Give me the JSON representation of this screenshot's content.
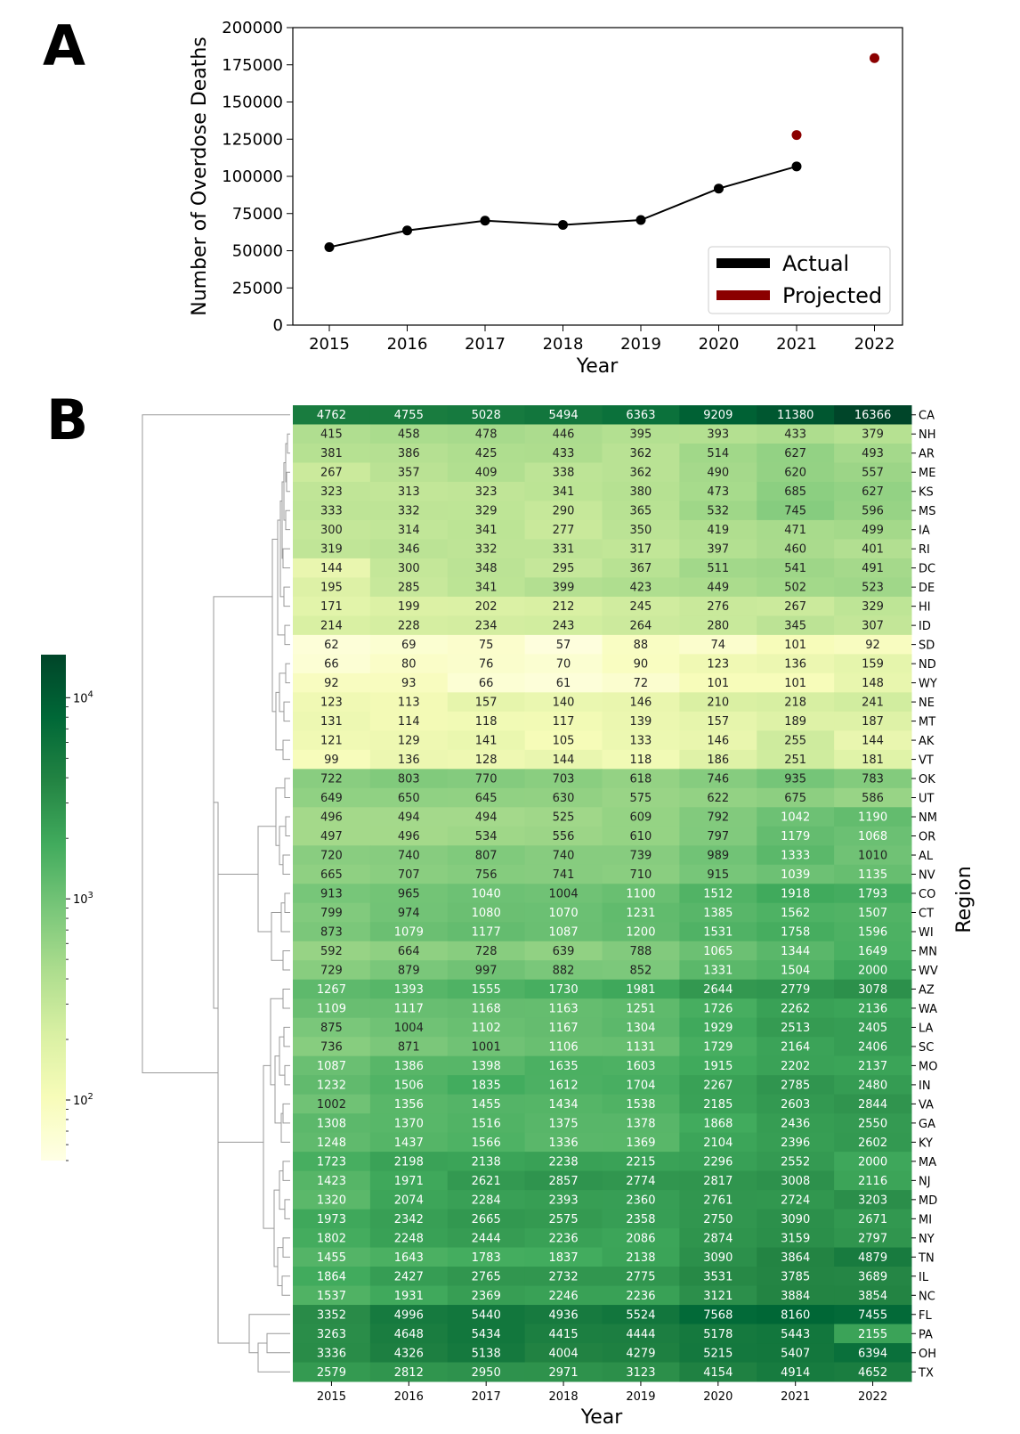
{
  "panels": {
    "a": "A",
    "b": "B"
  },
  "chart_data": [
    {
      "type": "line",
      "panel": "A",
      "xlabel": "Year",
      "ylabel": "Number of Overdose Deaths",
      "x": [
        2015,
        2016,
        2017,
        2018,
        2019,
        2020,
        2021,
        2022
      ],
      "ylim": [
        0,
        200000
      ],
      "yticks": [
        0,
        25000,
        50000,
        75000,
        100000,
        125000,
        150000,
        175000,
        200000
      ],
      "series": [
        {
          "name": "Actual",
          "color": "#000000",
          "x": [
            2015,
            2016,
            2017,
            2018,
            2019,
            2020,
            2021
          ],
          "values": [
            52404,
            63632,
            70237,
            67367,
            70630,
            91799,
            106699
          ]
        },
        {
          "name": "Projected",
          "color": "#8b0000",
          "x": [
            2021,
            2022
          ],
          "values": [
            127800,
            179500
          ]
        }
      ],
      "legend": {
        "position": "bottom-right",
        "entries": [
          "Actual",
          "Projected"
        ]
      }
    },
    {
      "type": "heatmap",
      "panel": "B",
      "xlabel": "Year",
      "ylabel": "Region",
      "color_scale": "log",
      "colormap": "YlGn",
      "colorbar_ticks": [
        {
          "label": "10",
          "exp": "2",
          "value": 100
        },
        {
          "label": "10",
          "exp": "3",
          "value": 1000
        },
        {
          "label": "10",
          "exp": "4",
          "value": 10000
        }
      ],
      "colorbar_range": [
        50,
        16366
      ],
      "years": [
        "2015",
        "2016",
        "2017",
        "2018",
        "2019",
        "2020",
        "2021",
        "2022"
      ],
      "rows": [
        {
          "region": "CA",
          "values": [
            4762,
            4755,
            5028,
            5494,
            6363,
            9209,
            11380,
            16366
          ]
        },
        {
          "region": "NH",
          "values": [
            415,
            458,
            478,
            446,
            395,
            393,
            433,
            379
          ]
        },
        {
          "region": "AR",
          "values": [
            381,
            386,
            425,
            433,
            362,
            514,
            627,
            493
          ]
        },
        {
          "region": "ME",
          "values": [
            267,
            357,
            409,
            338,
            362,
            490,
            620,
            557
          ]
        },
        {
          "region": "KS",
          "values": [
            323,
            313,
            323,
            341,
            380,
            473,
            685,
            627
          ]
        },
        {
          "region": "MS",
          "values": [
            333,
            332,
            329,
            290,
            365,
            532,
            745,
            596
          ]
        },
        {
          "region": "IA",
          "values": [
            300,
            314,
            341,
            277,
            350,
            419,
            471,
            499
          ]
        },
        {
          "region": "RI",
          "values": [
            319,
            346,
            332,
            331,
            317,
            397,
            460,
            401
          ]
        },
        {
          "region": "DC",
          "values": [
            144,
            300,
            348,
            295,
            367,
            511,
            541,
            491
          ]
        },
        {
          "region": "DE",
          "values": [
            195,
            285,
            341,
            399,
            423,
            449,
            502,
            523
          ]
        },
        {
          "region": "HI",
          "values": [
            171,
            199,
            202,
            212,
            245,
            276,
            267,
            329
          ]
        },
        {
          "region": "ID",
          "values": [
            214,
            228,
            234,
            243,
            264,
            280,
            345,
            307
          ]
        },
        {
          "region": "SD",
          "values": [
            62,
            69,
            75,
            57,
            88,
            74,
            101,
            92
          ]
        },
        {
          "region": "ND",
          "values": [
            66,
            80,
            76,
            70,
            90,
            123,
            136,
            159
          ]
        },
        {
          "region": "WY",
          "values": [
            92,
            93,
            66,
            61,
            72,
            101,
            101,
            148
          ]
        },
        {
          "region": "NE",
          "values": [
            123,
            113,
            157,
            140,
            146,
            210,
            218,
            241
          ]
        },
        {
          "region": "MT",
          "values": [
            131,
            114,
            118,
            117,
            139,
            157,
            189,
            187
          ]
        },
        {
          "region": "AK",
          "values": [
            121,
            129,
            141,
            105,
            133,
            146,
            255,
            144
          ]
        },
        {
          "region": "VT",
          "values": [
            99,
            136,
            128,
            144,
            118,
            186,
            251,
            181
          ]
        },
        {
          "region": "OK",
          "values": [
            722,
            803,
            770,
            703,
            618,
            746,
            935,
            783
          ]
        },
        {
          "region": "UT",
          "values": [
            649,
            650,
            645,
            630,
            575,
            622,
            675,
            586
          ]
        },
        {
          "region": "NM",
          "values": [
            496,
            494,
            494,
            525,
            609,
            792,
            1042,
            1190
          ]
        },
        {
          "region": "OR",
          "values": [
            497,
            496,
            534,
            556,
            610,
            797,
            1179,
            1068
          ]
        },
        {
          "region": "AL",
          "values": [
            720,
            740,
            807,
            740,
            739,
            989,
            1333,
            1010
          ]
        },
        {
          "region": "NV",
          "values": [
            665,
            707,
            756,
            741,
            710,
            915,
            1039,
            1135
          ]
        },
        {
          "region": "CO",
          "values": [
            913,
            965,
            1040,
            1004,
            1100,
            1512,
            1918,
            1793
          ]
        },
        {
          "region": "CT",
          "values": [
            799,
            974,
            1080,
            1070,
            1231,
            1385,
            1562,
            1507
          ]
        },
        {
          "region": "WI",
          "values": [
            873,
            1079,
            1177,
            1087,
            1200,
            1531,
            1758,
            1596
          ]
        },
        {
          "region": "MN",
          "values": [
            592,
            664,
            728,
            639,
            788,
            1065,
            1344,
            1649
          ]
        },
        {
          "region": "WV",
          "values": [
            729,
            879,
            997,
            882,
            852,
            1331,
            1504,
            2000
          ]
        },
        {
          "region": "AZ",
          "values": [
            1267,
            1393,
            1555,
            1730,
            1981,
            2644,
            2779,
            3078
          ]
        },
        {
          "region": "WA",
          "values": [
            1109,
            1117,
            1168,
            1163,
            1251,
            1726,
            2262,
            2136
          ]
        },
        {
          "region": "LA",
          "values": [
            875,
            1004,
            1102,
            1167,
            1304,
            1929,
            2513,
            2405
          ]
        },
        {
          "region": "SC",
          "values": [
            736,
            871,
            1001,
            1106,
            1131,
            1729,
            2164,
            2406
          ]
        },
        {
          "region": "MO",
          "values": [
            1087,
            1386,
            1398,
            1635,
            1603,
            1915,
            2202,
            2137
          ]
        },
        {
          "region": "IN",
          "values": [
            1232,
            1506,
            1835,
            1612,
            1704,
            2267,
            2785,
            2480
          ]
        },
        {
          "region": "VA",
          "values": [
            1002,
            1356,
            1455,
            1434,
            1538,
            2185,
            2603,
            2844
          ]
        },
        {
          "region": "GA",
          "values": [
            1308,
            1370,
            1516,
            1375,
            1378,
            1868,
            2436,
            2550
          ]
        },
        {
          "region": "KY",
          "values": [
            1248,
            1437,
            1566,
            1336,
            1369,
            2104,
            2396,
            2602
          ]
        },
        {
          "region": "MA",
          "values": [
            1723,
            2198,
            2138,
            2238,
            2215,
            2296,
            2552,
            2000
          ]
        },
        {
          "region": "NJ",
          "values": [
            1423,
            1971,
            2621,
            2857,
            2774,
            2817,
            3008,
            2116
          ]
        },
        {
          "region": "MD",
          "values": [
            1320,
            2074,
            2284,
            2393,
            2360,
            2761,
            2724,
            3203
          ]
        },
        {
          "region": "MI",
          "values": [
            1973,
            2342,
            2665,
            2575,
            2358,
            2750,
            3090,
            2671
          ]
        },
        {
          "region": "NY",
          "values": [
            1802,
            2248,
            2444,
            2236,
            2086,
            2874,
            3159,
            2797
          ]
        },
        {
          "region": "TN",
          "values": [
            1455,
            1643,
            1783,
            1837,
            2138,
            3090,
            3864,
            4879
          ]
        },
        {
          "region": "IL",
          "values": [
            1864,
            2427,
            2765,
            2732,
            2775,
            3531,
            3785,
            3689
          ]
        },
        {
          "region": "NC",
          "values": [
            1537,
            1931,
            2369,
            2246,
            2236,
            3121,
            3884,
            3854
          ]
        },
        {
          "region": "FL",
          "values": [
            3352,
            4996,
            5440,
            4936,
            5524,
            7568,
            8160,
            7455
          ]
        },
        {
          "region": "PA",
          "values": [
            3263,
            4648,
            5434,
            4415,
            4444,
            5178,
            5443,
            2155
          ]
        },
        {
          "region": "OH",
          "values": [
            3336,
            4326,
            5138,
            4004,
            4279,
            5215,
            5407,
            6394
          ]
        },
        {
          "region": "TX",
          "values": [
            2579,
            2812,
            2950,
            2971,
            3123,
            4154,
            4914,
            4652
          ]
        }
      ]
    }
  ]
}
